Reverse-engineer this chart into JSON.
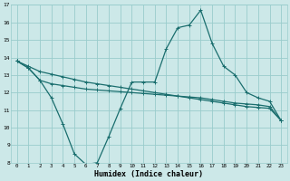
{
  "xlabel": "Humidex (Indice chaleur)",
  "bg_color": "#cce8e8",
  "grid_color": "#99cccc",
  "line_color": "#1a6e6e",
  "xlim": [
    -0.5,
    23.5
  ],
  "ylim": [
    8,
    17
  ],
  "xticks": [
    0,
    1,
    2,
    3,
    4,
    5,
    6,
    7,
    8,
    9,
    10,
    11,
    12,
    13,
    14,
    15,
    16,
    17,
    18,
    19,
    20,
    21,
    22,
    23
  ],
  "yticks": [
    8,
    9,
    10,
    11,
    12,
    13,
    14,
    15,
    16,
    17
  ],
  "line1_x": [
    0,
    1,
    2,
    3,
    4,
    5,
    6,
    7,
    8,
    9,
    10,
    11,
    12,
    13,
    14,
    15,
    16,
    17,
    18,
    19,
    20,
    21,
    22,
    23
  ],
  "line1_y": [
    13.8,
    13.4,
    12.7,
    12.5,
    12.4,
    12.3,
    12.2,
    12.15,
    12.1,
    12.05,
    12.0,
    11.95,
    11.9,
    11.85,
    11.8,
    11.75,
    11.7,
    11.6,
    11.5,
    11.4,
    11.35,
    11.3,
    11.2,
    10.4
  ],
  "line2_x": [
    0,
    1,
    2,
    3,
    4,
    5,
    6,
    7,
    8,
    9,
    10,
    11,
    12,
    13,
    14,
    15,
    16,
    17,
    18,
    19,
    20,
    21,
    22,
    23
  ],
  "line2_y": [
    13.8,
    13.4,
    12.7,
    11.7,
    10.2,
    8.5,
    7.9,
    8.0,
    9.5,
    11.1,
    12.6,
    12.6,
    12.6,
    14.5,
    15.7,
    15.85,
    16.7,
    14.8,
    13.5,
    13.0,
    12.0,
    11.7,
    11.5,
    10.4
  ],
  "line3_x": [
    0,
    1,
    2,
    3,
    4,
    5,
    6,
    7,
    8,
    9,
    10,
    11,
    12,
    13,
    14,
    15,
    16,
    17,
    18,
    19,
    20,
    21,
    22,
    23
  ],
  "line3_y": [
    13.8,
    13.5,
    13.2,
    13.05,
    12.9,
    12.75,
    12.6,
    12.5,
    12.4,
    12.3,
    12.2,
    12.1,
    12.0,
    11.9,
    11.8,
    11.7,
    11.6,
    11.5,
    11.4,
    11.3,
    11.2,
    11.15,
    11.1,
    10.4
  ]
}
